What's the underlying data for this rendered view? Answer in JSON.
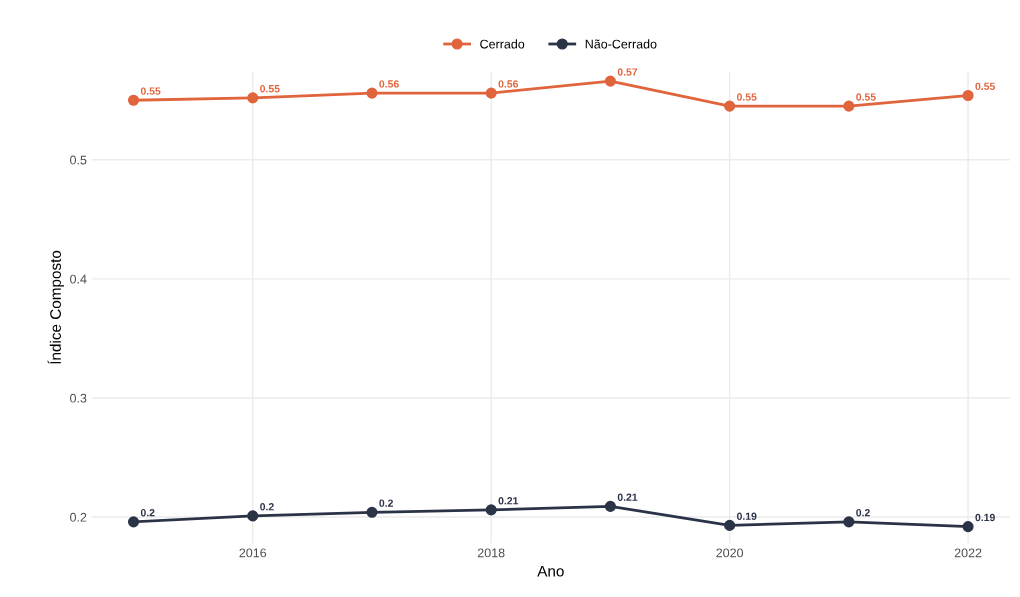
{
  "chart_data": {
    "type": "line",
    "xlabel": "Ano",
    "ylabel": "Índice Composto",
    "x": [
      2015,
      2016,
      2017,
      2018,
      2019,
      2020,
      2021,
      2022
    ],
    "series": [
      {
        "name": "Cerrado",
        "color": "#e0643c",
        "values": [
          0.55,
          0.552,
          0.556,
          0.556,
          0.566,
          0.545,
          0.545,
          0.554
        ],
        "value_labels": [
          "0.55",
          "0.55",
          "0.56",
          "0.56",
          "0.57",
          "0.55",
          "0.55",
          "0.55"
        ]
      },
      {
        "name": "Não-Cerrado",
        "color": "#2b3347",
        "values": [
          0.196,
          0.201,
          0.204,
          0.206,
          0.209,
          0.193,
          0.196,
          0.192
        ],
        "value_labels": [
          "0.2",
          "0.2",
          "0.2",
          "0.21",
          "0.21",
          "0.19",
          "0.2",
          "0.19"
        ]
      }
    ],
    "xlim": [
      2014.65,
      2022.35
    ],
    "xticks": [
      2016,
      2018,
      2020,
      2022
    ],
    "ylim": [
      0.178,
      0.574
    ],
    "yticks": [
      0.2,
      0.3,
      0.4,
      0.5
    ],
    "grid": true,
    "legend": "top",
    "marker": "circle",
    "line_style": "solid"
  }
}
